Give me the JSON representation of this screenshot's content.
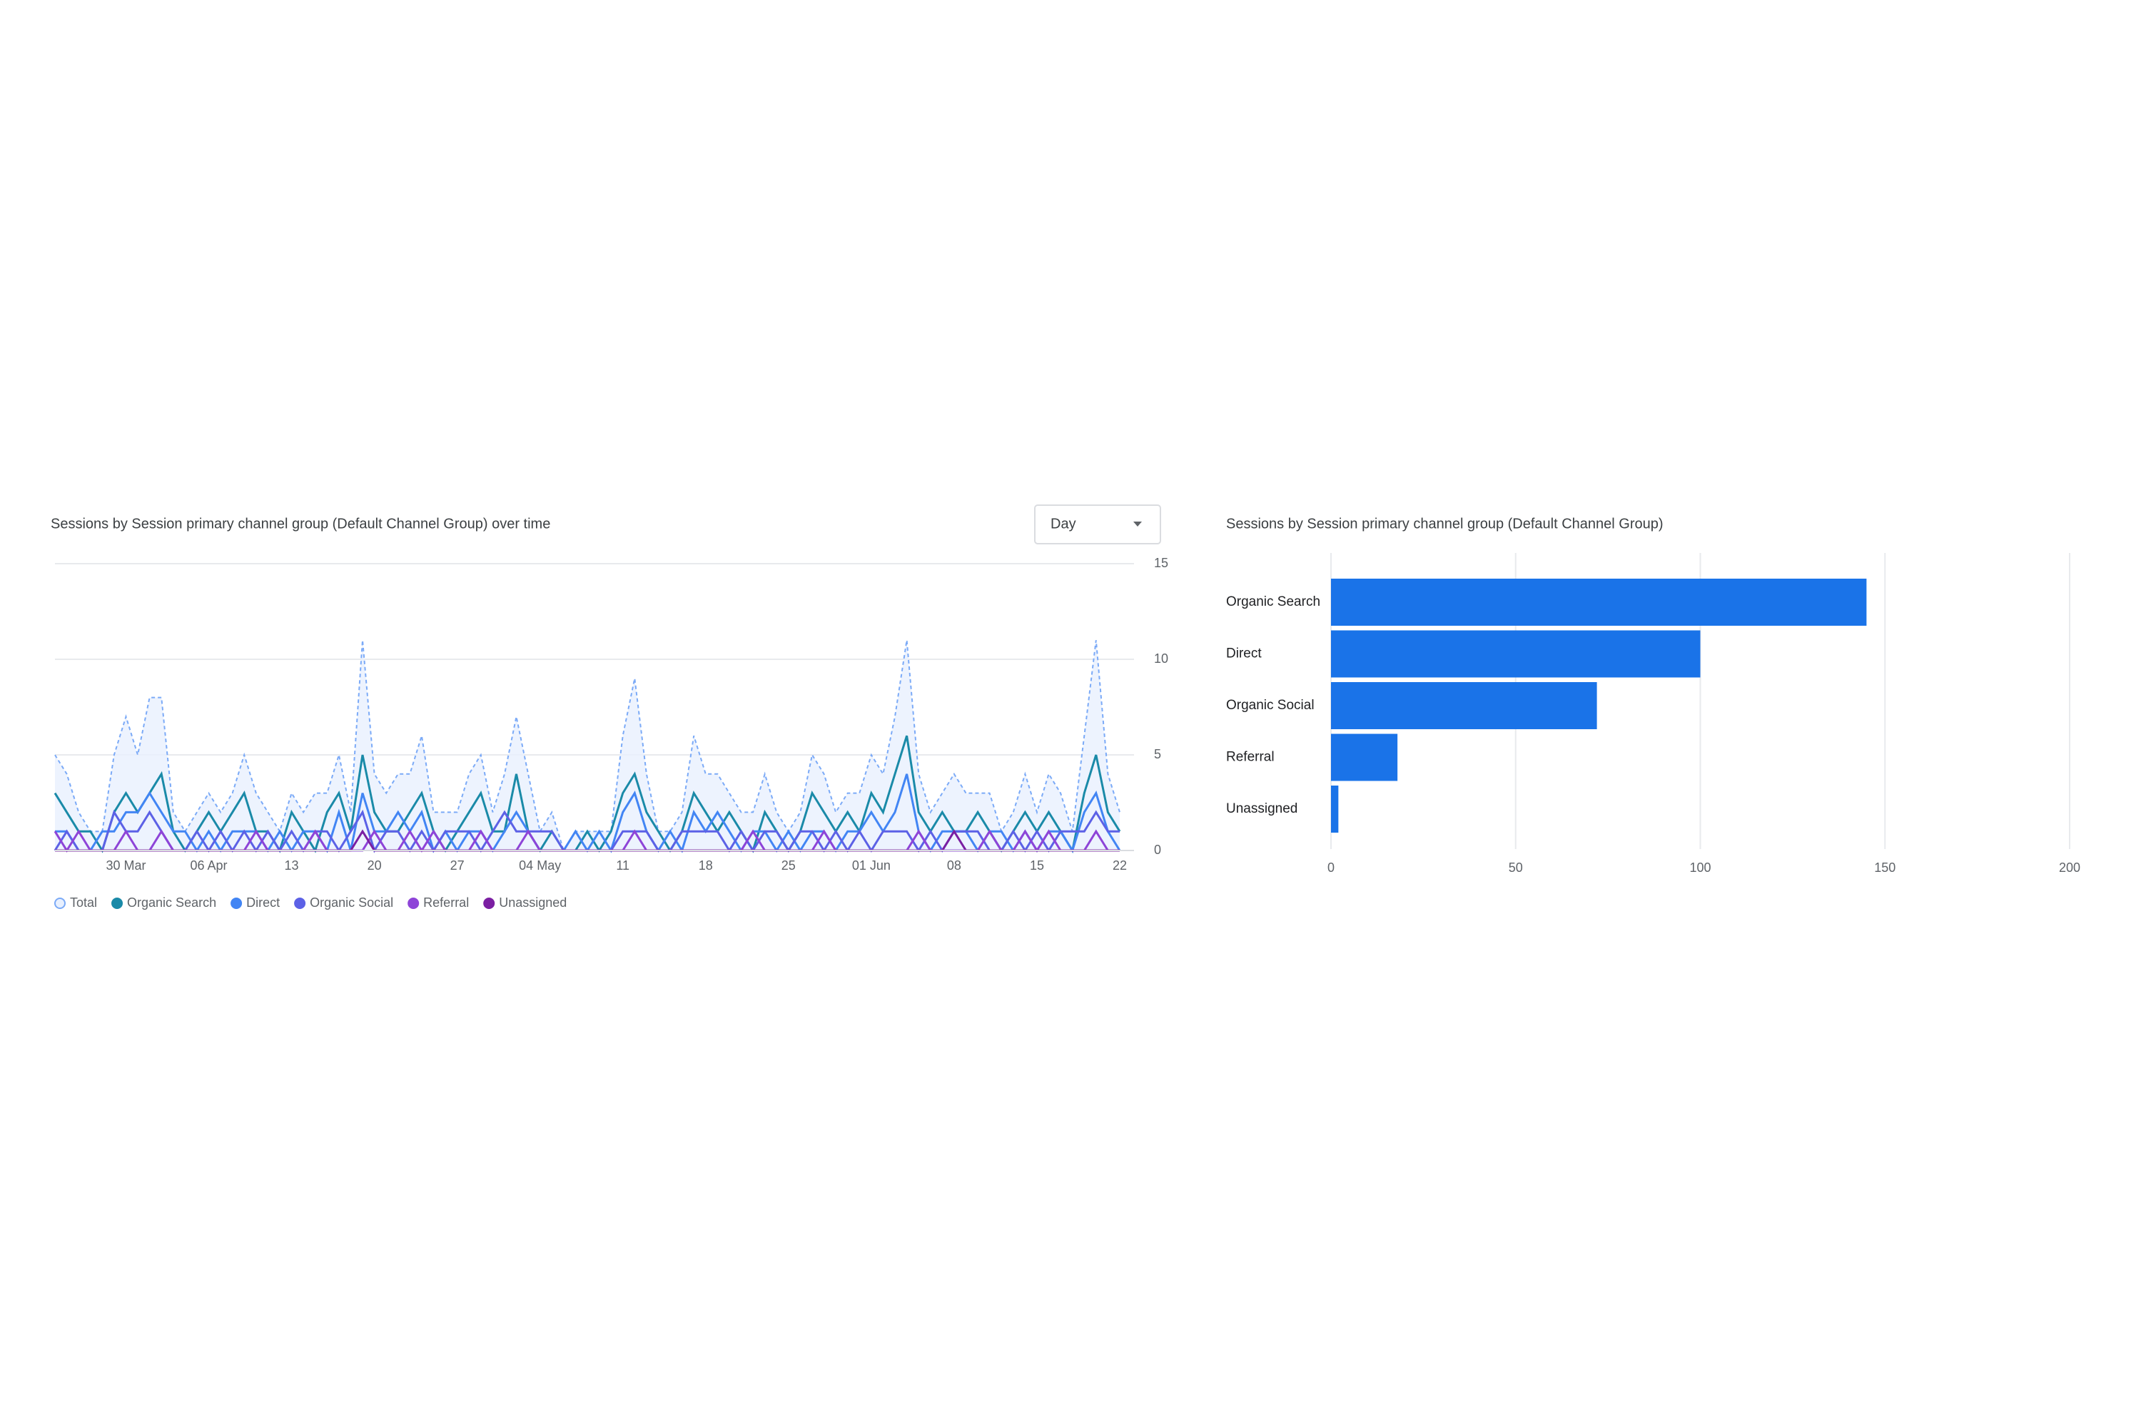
{
  "controls": {
    "granularity": "Day"
  },
  "chart_data": [
    {
      "type": "line",
      "title": "Sessions by Session primary channel group (Default Channel Group) over time",
      "categories": [
        null,
        null,
        null,
        null,
        null,
        null,
        "30 Mar",
        null,
        null,
        null,
        null,
        null,
        null,
        "06 Apr",
        null,
        null,
        null,
        null,
        null,
        null,
        "13",
        null,
        null,
        null,
        null,
        null,
        null,
        "20",
        null,
        null,
        null,
        null,
        null,
        null,
        "27",
        null,
        null,
        null,
        null,
        null,
        null,
        "04 May",
        null,
        null,
        null,
        null,
        null,
        null,
        "11",
        null,
        null,
        null,
        null,
        null,
        null,
        "18",
        null,
        null,
        null,
        null,
        null,
        null,
        "25",
        null,
        null,
        null,
        null,
        null,
        null,
        "01 Jun",
        null,
        null,
        null,
        null,
        null,
        null,
        "08",
        null,
        null,
        null,
        null,
        null,
        null,
        "15",
        null,
        null,
        null,
        null,
        null,
        null,
        "22"
      ],
      "ylim": [
        0,
        15
      ],
      "yticks": [
        0,
        5,
        10,
        15
      ],
      "grid": true,
      "series": [
        {
          "name": "Total",
          "color": "#7baaf7",
          "fill": "#e8f0fe",
          "dash": true,
          "values": [
            5,
            4,
            2,
            1,
            1,
            5,
            7,
            5,
            8,
            8,
            2,
            1,
            2,
            3,
            2,
            3,
            5,
            3,
            2,
            1,
            3,
            2,
            3,
            3,
            5,
            2,
            11,
            4,
            3,
            4,
            4,
            6,
            2,
            2,
            2,
            4,
            5,
            2,
            4,
            7,
            4,
            1,
            2,
            0,
            1,
            1,
            1,
            1,
            6,
            9,
            4,
            1,
            1,
            2,
            6,
            4,
            4,
            3,
            2,
            2,
            4,
            2,
            1,
            2,
            5,
            4,
            2,
            3,
            3,
            5,
            4,
            7,
            11,
            4,
            2,
            3,
            4,
            3,
            3,
            3,
            1,
            2,
            4,
            2,
            4,
            3,
            1,
            6,
            11,
            4,
            2
          ]
        },
        {
          "name": "Organic Search",
          "color": "#1a8aa8",
          "values": [
            3,
            2,
            1,
            1,
            0,
            2,
            3,
            2,
            3,
            4,
            1,
            0,
            1,
            2,
            1,
            2,
            3,
            1,
            1,
            0,
            2,
            1,
            0,
            2,
            3,
            1,
            5,
            2,
            1,
            1,
            2,
            3,
            1,
            0,
            1,
            2,
            3,
            1,
            1,
            4,
            1,
            0,
            1,
            0,
            0,
            1,
            0,
            1,
            3,
            4,
            2,
            1,
            0,
            1,
            3,
            2,
            1,
            2,
            1,
            0,
            2,
            1,
            0,
            1,
            3,
            2,
            1,
            2,
            1,
            3,
            2,
            4,
            6,
            2,
            1,
            2,
            1,
            1,
            2,
            1,
            0,
            1,
            2,
            1,
            2,
            1,
            0,
            3,
            5,
            2,
            1
          ]
        },
        {
          "name": "Direct",
          "color": "#4285f4",
          "values": [
            1,
            1,
            0,
            0,
            1,
            1,
            2,
            2,
            3,
            2,
            1,
            1,
            0,
            1,
            0,
            1,
            1,
            1,
            0,
            1,
            0,
            1,
            1,
            0,
            2,
            0,
            3,
            1,
            1,
            2,
            1,
            2,
            0,
            1,
            0,
            1,
            1,
            0,
            1,
            2,
            1,
            0,
            0,
            0,
            1,
            0,
            1,
            0,
            2,
            3,
            1,
            0,
            1,
            0,
            2,
            1,
            2,
            1,
            0,
            1,
            1,
            0,
            1,
            0,
            1,
            1,
            0,
            1,
            1,
            2,
            1,
            2,
            4,
            1,
            0,
            1,
            1,
            1,
            0,
            1,
            1,
            0,
            1,
            0,
            1,
            1,
            0,
            2,
            3,
            1,
            0
          ]
        },
        {
          "name": "Organic Social",
          "color": "#5c61e6",
          "values": [
            0,
            1,
            0,
            0,
            0,
            2,
            1,
            1,
            2,
            1,
            0,
            0,
            1,
            0,
            1,
            0,
            1,
            0,
            1,
            0,
            1,
            0,
            1,
            1,
            0,
            1,
            2,
            0,
            1,
            1,
            0,
            1,
            0,
            1,
            1,
            1,
            0,
            1,
            2,
            1,
            1,
            1,
            1,
            0,
            0,
            0,
            0,
            0,
            1,
            1,
            1,
            0,
            0,
            1,
            1,
            1,
            1,
            0,
            1,
            0,
            1,
            1,
            0,
            1,
            1,
            0,
            1,
            0,
            1,
            0,
            1,
            1,
            1,
            0,
            1,
            0,
            1,
            1,
            1,
            0,
            0,
            1,
            0,
            1,
            0,
            1,
            1,
            1,
            2,
            1,
            1
          ]
        },
        {
          "name": "Referral",
          "color": "#8e44d8",
          "values": [
            1,
            0,
            1,
            0,
            0,
            0,
            1,
            0,
            0,
            1,
            0,
            0,
            0,
            0,
            0,
            0,
            0,
            1,
            0,
            0,
            0,
            0,
            1,
            0,
            0,
            0,
            0,
            1,
            0,
            0,
            1,
            0,
            1,
            0,
            0,
            0,
            1,
            0,
            0,
            0,
            1,
            0,
            0,
            0,
            0,
            0,
            0,
            0,
            0,
            1,
            0,
            0,
            0,
            0,
            0,
            0,
            0,
            0,
            0,
            1,
            0,
            0,
            0,
            0,
            0,
            1,
            0,
            0,
            0,
            0,
            0,
            0,
            0,
            1,
            0,
            0,
            0,
            0,
            0,
            1,
            0,
            0,
            1,
            0,
            1,
            0,
            0,
            0,
            1,
            0,
            0
          ]
        },
        {
          "name": "Unassigned",
          "color": "#7b1fa2",
          "values": [
            0,
            0,
            0,
            0,
            0,
            0,
            0,
            0,
            0,
            0,
            0,
            0,
            0,
            0,
            0,
            0,
            0,
            0,
            0,
            0,
            0,
            0,
            0,
            0,
            0,
            0,
            1,
            0,
            0,
            0,
            0,
            0,
            0,
            0,
            0,
            0,
            0,
            0,
            0,
            0,
            0,
            0,
            0,
            0,
            0,
            0,
            0,
            0,
            0,
            0,
            0,
            0,
            0,
            0,
            0,
            0,
            0,
            0,
            0,
            0,
            0,
            0,
            0,
            0,
            0,
            0,
            0,
            0,
            0,
            0,
            0,
            0,
            0,
            0,
            0,
            0,
            1,
            0,
            0,
            0,
            0,
            0,
            0,
            0,
            0,
            0,
            0,
            0,
            0,
            0,
            0
          ]
        }
      ]
    },
    {
      "type": "barh",
      "title": "Sessions by Session primary channel group (Default Channel Group)",
      "categories": [
        "Organic Search",
        "Direct",
        "Organic Social",
        "Referral",
        "Unassigned"
      ],
      "values": [
        145,
        100,
        72,
        18,
        2
      ],
      "color": "#1a73e8",
      "xlim": [
        0,
        200
      ],
      "xticks": [
        0,
        50,
        100,
        150,
        200
      ],
      "grid": true
    }
  ]
}
